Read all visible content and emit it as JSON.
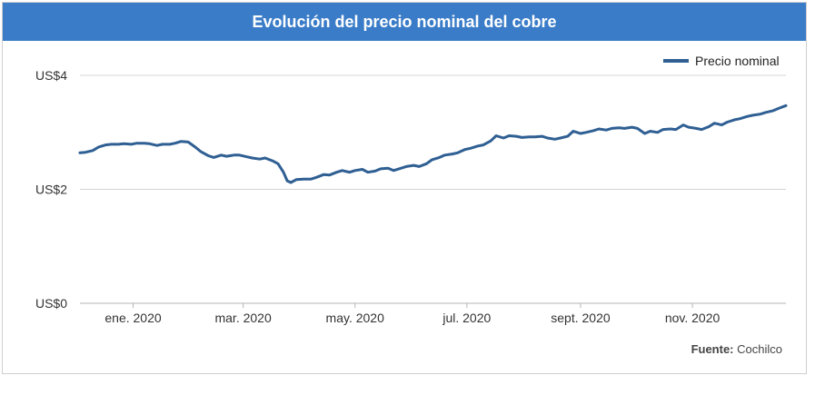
{
  "title": "Evolución del precio nominal del cobre",
  "source_label": "Fuente:",
  "source_value": "Cochilco",
  "colors": {
    "header": "#3a7cc7",
    "line": "#2f5f93",
    "grid": "#d4d4d4"
  },
  "chart_data": {
    "type": "line",
    "title": "Evolución del precio nominal del cobre",
    "xlabel": "",
    "ylabel": "",
    "ylim": [
      0,
      4
    ],
    "yticks": [
      {
        "value": 0,
        "label": "US$0"
      },
      {
        "value": 2,
        "label": "US$2"
      },
      {
        "value": 4,
        "label": "US$4"
      }
    ],
    "xlim": [
      "2019-12-03",
      "2020-12-22"
    ],
    "xticks": [
      {
        "date": "2020-01-01",
        "label": "ene. 2020"
      },
      {
        "date": "2020-03-01",
        "label": "mar. 2020"
      },
      {
        "date": "2020-05-01",
        "label": "may. 2020"
      },
      {
        "date": "2020-07-01",
        "label": "jul. 2020"
      },
      {
        "date": "2020-09-01",
        "label": "sept. 2020"
      },
      {
        "date": "2020-11-01",
        "label": "nov. 2020"
      }
    ],
    "grid": true,
    "legend_position": "top-right",
    "series": [
      {
        "name": "Precio nominal",
        "points": [
          [
            "2019-12-03",
            2.64
          ],
          [
            "2019-12-06",
            2.65
          ],
          [
            "2019-12-10",
            2.68
          ],
          [
            "2019-12-13",
            2.74
          ],
          [
            "2019-12-17",
            2.78
          ],
          [
            "2019-12-20",
            2.79
          ],
          [
            "2019-12-24",
            2.79
          ],
          [
            "2019-12-27",
            2.8
          ],
          [
            "2019-12-31",
            2.79
          ],
          [
            "2020-01-03",
            2.81
          ],
          [
            "2020-01-07",
            2.81
          ],
          [
            "2020-01-10",
            2.8
          ],
          [
            "2020-01-14",
            2.77
          ],
          [
            "2020-01-17",
            2.79
          ],
          [
            "2020-01-21",
            2.79
          ],
          [
            "2020-01-24",
            2.81
          ],
          [
            "2020-01-27",
            2.84
          ],
          [
            "2020-01-31",
            2.83
          ],
          [
            "2020-02-04",
            2.74
          ],
          [
            "2020-02-07",
            2.66
          ],
          [
            "2020-02-11",
            2.59
          ],
          [
            "2020-02-14",
            2.56
          ],
          [
            "2020-02-18",
            2.6
          ],
          [
            "2020-02-21",
            2.58
          ],
          [
            "2020-02-25",
            2.6
          ],
          [
            "2020-02-28",
            2.6
          ],
          [
            "2020-03-03",
            2.57
          ],
          [
            "2020-03-06",
            2.55
          ],
          [
            "2020-03-10",
            2.53
          ],
          [
            "2020-03-13",
            2.55
          ],
          [
            "2020-03-17",
            2.5
          ],
          [
            "2020-03-20",
            2.45
          ],
          [
            "2020-03-23",
            2.3
          ],
          [
            "2020-03-25",
            2.15
          ],
          [
            "2020-03-27",
            2.12
          ],
          [
            "2020-03-30",
            2.17
          ],
          [
            "2020-04-03",
            2.18
          ],
          [
            "2020-04-07",
            2.18
          ],
          [
            "2020-04-10",
            2.21
          ],
          [
            "2020-04-14",
            2.26
          ],
          [
            "2020-04-17",
            2.25
          ],
          [
            "2020-04-21",
            2.3
          ],
          [
            "2020-04-24",
            2.33
          ],
          [
            "2020-04-28",
            2.3
          ],
          [
            "2020-05-01",
            2.33
          ],
          [
            "2020-05-05",
            2.35
          ],
          [
            "2020-05-08",
            2.3
          ],
          [
            "2020-05-12",
            2.32
          ],
          [
            "2020-05-15",
            2.36
          ],
          [
            "2020-05-19",
            2.37
          ],
          [
            "2020-05-22",
            2.33
          ],
          [
            "2020-05-26",
            2.37
          ],
          [
            "2020-05-29",
            2.4
          ],
          [
            "2020-06-02",
            2.42
          ],
          [
            "2020-06-05",
            2.4
          ],
          [
            "2020-06-09",
            2.45
          ],
          [
            "2020-06-12",
            2.52
          ],
          [
            "2020-06-16",
            2.56
          ],
          [
            "2020-06-19",
            2.6
          ],
          [
            "2020-06-23",
            2.62
          ],
          [
            "2020-06-26",
            2.64
          ],
          [
            "2020-06-30",
            2.7
          ],
          [
            "2020-07-03",
            2.72
          ],
          [
            "2020-07-07",
            2.76
          ],
          [
            "2020-07-10",
            2.78
          ],
          [
            "2020-07-14",
            2.85
          ],
          [
            "2020-07-17",
            2.94
          ],
          [
            "2020-07-21",
            2.9
          ],
          [
            "2020-07-24",
            2.94
          ],
          [
            "2020-07-28",
            2.93
          ],
          [
            "2020-07-31",
            2.91
          ],
          [
            "2020-08-04",
            2.92
          ],
          [
            "2020-08-07",
            2.92
          ],
          [
            "2020-08-11",
            2.93
          ],
          [
            "2020-08-14",
            2.9
          ],
          [
            "2020-08-18",
            2.88
          ],
          [
            "2020-08-21",
            2.9
          ],
          [
            "2020-08-25",
            2.93
          ],
          [
            "2020-08-28",
            3.02
          ],
          [
            "2020-09-01",
            2.98
          ],
          [
            "2020-09-04",
            3.0
          ],
          [
            "2020-09-08",
            3.03
          ],
          [
            "2020-09-11",
            3.06
          ],
          [
            "2020-09-15",
            3.04
          ],
          [
            "2020-09-18",
            3.07
          ],
          [
            "2020-09-22",
            3.08
          ],
          [
            "2020-09-25",
            3.07
          ],
          [
            "2020-09-29",
            3.09
          ],
          [
            "2020-10-02",
            3.07
          ],
          [
            "2020-10-06",
            2.98
          ],
          [
            "2020-10-09",
            3.02
          ],
          [
            "2020-10-13",
            3.0
          ],
          [
            "2020-10-16",
            3.05
          ],
          [
            "2020-10-20",
            3.06
          ],
          [
            "2020-10-23",
            3.05
          ],
          [
            "2020-10-27",
            3.13
          ],
          [
            "2020-10-30",
            3.09
          ],
          [
            "2020-11-03",
            3.07
          ],
          [
            "2020-11-06",
            3.05
          ],
          [
            "2020-11-10",
            3.1
          ],
          [
            "2020-11-13",
            3.16
          ],
          [
            "2020-11-17",
            3.13
          ],
          [
            "2020-11-20",
            3.18
          ],
          [
            "2020-11-24",
            3.22
          ],
          [
            "2020-11-27",
            3.24
          ],
          [
            "2020-12-01",
            3.28
          ],
          [
            "2020-12-04",
            3.3
          ],
          [
            "2020-12-08",
            3.32
          ],
          [
            "2020-12-11",
            3.35
          ],
          [
            "2020-12-15",
            3.38
          ],
          [
            "2020-12-18",
            3.42
          ],
          [
            "2020-12-22",
            3.47
          ]
        ]
      }
    ]
  }
}
